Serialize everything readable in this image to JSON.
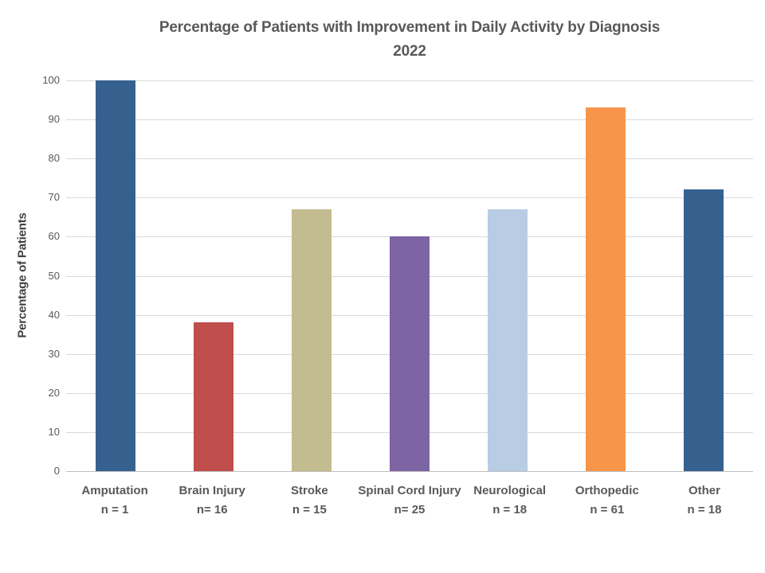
{
  "chart_data": {
    "type": "bar",
    "title": "Percentage of Patients with Improvement in Daily Activity by Diagnosis",
    "subtitle": "2022",
    "xlabel": "",
    "ylabel": "Percentage of Patients",
    "categories": [
      "Amputation",
      "Brain Injury",
      "Stroke",
      "Spinal Cord Injury",
      "Neurological",
      "Orthopedic",
      "Other"
    ],
    "sublabels": [
      "n = 1",
      "n= 16",
      "n = 15",
      "n= 25",
      "n = 18",
      "n = 61",
      "n = 18"
    ],
    "values": [
      100,
      38,
      67,
      60,
      67,
      93,
      72
    ],
    "bar_colors": [
      "#36618F",
      "#BF4E4D",
      "#C3BC90",
      "#7D64A3",
      "#B8CCE4",
      "#F7964B",
      "#36618F"
    ],
    "ylim": [
      0,
      100
    ],
    "yticks": [
      0,
      10,
      20,
      30,
      40,
      50,
      60,
      70,
      80,
      90,
      100
    ],
    "grid": true,
    "legend": "none"
  },
  "colors": {
    "background": "#FFFFFF",
    "title_text": "#595959",
    "axis_text": "#595959",
    "axis_title_text": "#404040",
    "gridline": "#D9D9D9",
    "baseline": "#BFBFBF"
  }
}
